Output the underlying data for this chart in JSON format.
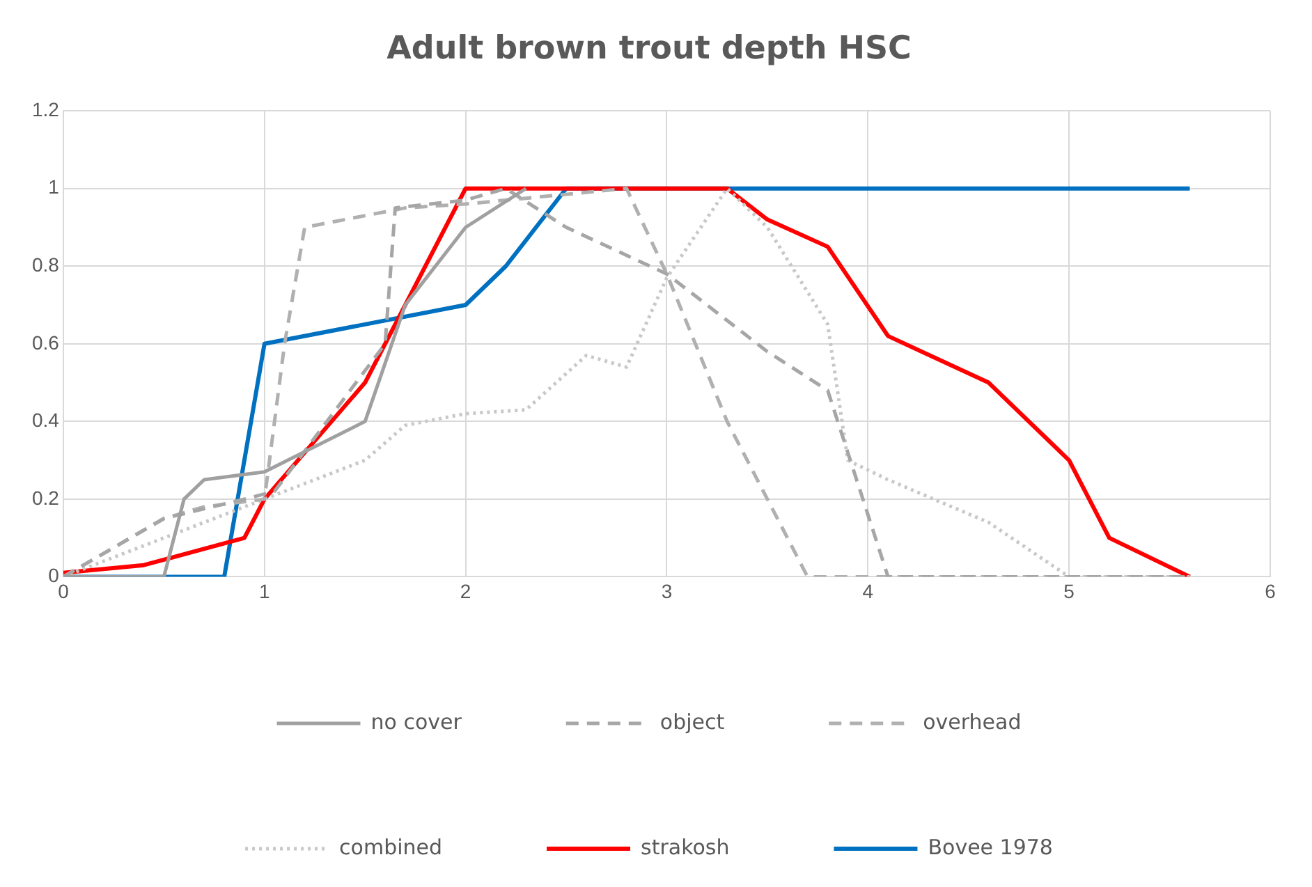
{
  "chart_data": {
    "type": "line",
    "title": "Adult brown trout depth HSC",
    "xlim": [
      0,
      6
    ],
    "xticks": [
      0,
      1,
      2,
      3,
      4,
      5,
      6
    ],
    "ylim": [
      0,
      1.2
    ],
    "yticks": [
      0,
      0.2,
      0.4,
      0.6,
      0.8,
      1,
      1.2
    ],
    "grid": true,
    "legend": "bottom",
    "marker": "none",
    "series": [
      {
        "name": "no cover",
        "color": "#a0a0a0",
        "line_style": "solid",
        "x": [
          0,
          0.5,
          0.6,
          0.7,
          1,
          1.5,
          1.7,
          2,
          2.3
        ],
        "values": [
          0,
          0,
          0.2,
          0.25,
          0.27,
          0.4,
          0.7,
          0.9,
          1
        ]
      },
      {
        "name": "object",
        "color": "#a6a6a6",
        "line_style": "dashed",
        "x": [
          0,
          0.5,
          0.9,
          1.05,
          1.6,
          1.65,
          2,
          2.2,
          2.5,
          3,
          3.5,
          3.8,
          4.1,
          5.6
        ],
        "values": [
          0,
          0.15,
          0.2,
          0.22,
          0.6,
          0.95,
          0.97,
          1,
          0.9,
          0.78,
          0.58,
          0.48,
          0,
          0
        ]
      },
      {
        "name": "overhead",
        "color": "#b0b0b0",
        "line_style": "dashed",
        "x": [
          0,
          0.5,
          0.7,
          1,
          1.1,
          1.2,
          1.7,
          2,
          2.8,
          3,
          3.3,
          3.5,
          3.7,
          5.6
        ],
        "values": [
          0,
          0.15,
          0.18,
          0.2,
          0.6,
          0.9,
          0.95,
          0.96,
          1,
          0.78,
          0.4,
          0.2,
          0,
          0
        ]
      },
      {
        "name": "combined",
        "color": "#c8c8c8",
        "line_style": "dotted",
        "x": [
          0,
          0.5,
          1,
          1.5,
          1.7,
          2,
          2.3,
          2.6,
          2.8,
          3,
          3.3,
          3.5,
          3.8,
          3.9,
          4.1,
          4.6,
          5,
          5.6
        ],
        "values": [
          0,
          0.1,
          0.2,
          0.3,
          0.39,
          0.42,
          0.43,
          0.57,
          0.54,
          0.77,
          1,
          0.9,
          0.65,
          0.3,
          0.25,
          0.14,
          0,
          0
        ]
      },
      {
        "name": "strakosh",
        "color": "#ff0000",
        "line_style": "solid",
        "x": [
          0,
          0.4,
          0.9,
          1,
          1.5,
          2,
          3.3,
          3.5,
          3.8,
          4.1,
          4.6,
          5,
          5.2,
          5.6
        ],
        "values": [
          0.01,
          0.03,
          0.1,
          0.2,
          0.5,
          1,
          1,
          0.92,
          0.85,
          0.62,
          0.5,
          0.3,
          0.1,
          0
        ]
      },
      {
        "name": "Bovee 1978",
        "color": "#0070c0",
        "line_style": "solid",
        "x": [
          0,
          0.8,
          1,
          1.5,
          2,
          2.2,
          2.5,
          5.6
        ],
        "values": [
          0,
          0,
          0.6,
          0.65,
          0.7,
          0.8,
          1,
          1
        ]
      }
    ]
  }
}
